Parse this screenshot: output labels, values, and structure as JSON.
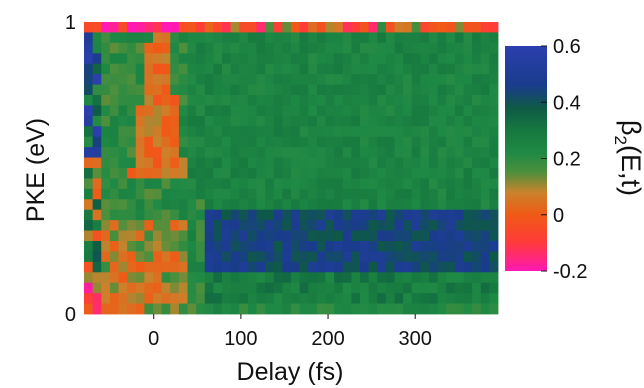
{
  "chart_data": {
    "type": "heatmap",
    "xlabel": "Delay (fs)",
    "ylabel": "PKE (eV)",
    "x_ticks": [
      "0",
      "100",
      "200",
      "300"
    ],
    "x_tick_values": [
      0,
      100,
      200,
      300
    ],
    "xlim": [
      -80,
      395
    ],
    "y_ticks": [
      "0",
      "1"
    ],
    "y_tick_values": [
      0,
      1
    ],
    "ylim": [
      0,
      1
    ],
    "grid": {
      "cols": 48,
      "rows": 28
    },
    "colorbar": {
      "label_main": "β",
      "label_sub": "2",
      "label_rest": "(E,t)",
      "ticks": [
        "0.6",
        "0.4",
        "0.2",
        "0",
        "-0.2"
      ],
      "tick_values": [
        0.6,
        0.4,
        0.2,
        0,
        -0.2
      ],
      "range": [
        -0.2,
        0.6
      ],
      "stops": [
        {
          "v": -0.2,
          "color": "#ff19b5"
        },
        {
          "v": -0.1,
          "color": "#ff3a3a"
        },
        {
          "v": 0.0,
          "color": "#f05a16"
        },
        {
          "v": 0.08,
          "color": "#c9832c"
        },
        {
          "v": 0.15,
          "color": "#4e8f3c"
        },
        {
          "v": 0.22,
          "color": "#1f8a45"
        },
        {
          "v": 0.3,
          "color": "#16783f"
        },
        {
          "v": 0.38,
          "color": "#0e5a46"
        },
        {
          "v": 0.46,
          "color": "#1a3c8c"
        },
        {
          "v": 0.6,
          "color": "#2b3fae"
        }
      ]
    },
    "grid_lines": false,
    "legend": "colorbar-right"
  }
}
